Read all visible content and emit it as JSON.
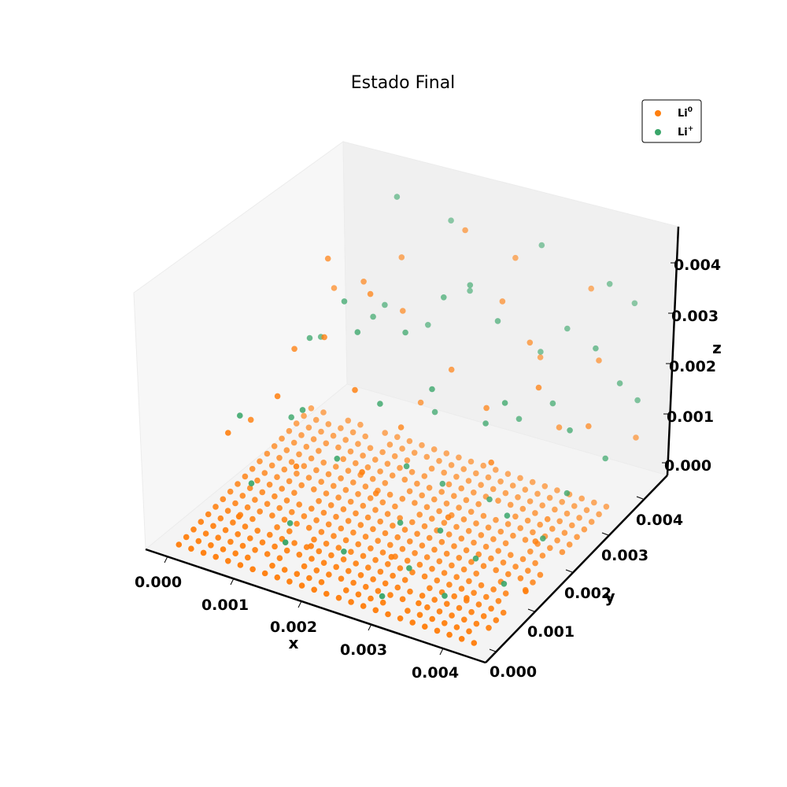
{
  "chart_data": {
    "type": "scatter",
    "title": "Estado Final",
    "xlabel": "x",
    "ylabel": "y",
    "zlabel": "z",
    "xlim": [
      0,
      0.0047
    ],
    "ylim": [
      0,
      0.0047
    ],
    "zlim": [
      0,
      0.0047
    ],
    "x_ticks": [
      "0.000",
      "0.001",
      "0.002",
      "0.003",
      "0.004"
    ],
    "y_ticks": [
      "0.000",
      "0.001",
      "0.002",
      "0.003",
      "0.004"
    ],
    "z_ticks": [
      "0.000",
      "0.001",
      "0.002",
      "0.003",
      "0.004"
    ],
    "legend_position": "top-right",
    "series": [
      {
        "name": "Li",
        "superscript": "0",
        "color": "#ff7f0e",
        "lattice": {
          "plane_z": 0,
          "x_start": 0.0003,
          "x_step": 0.00017,
          "x_count": 25,
          "y_start": 0.0003,
          "y_step": 0.00019,
          "y_count": 19,
          "missing_fraction": 0.05
        },
        "scattered_points": [
          [
            0.0008,
            0.003,
            0.0036
          ],
          [
            0.0015,
            0.0028,
            0.0034
          ],
          [
            0.0021,
            0.0041,
            0.0039
          ],
          [
            0.0028,
            0.0038,
            0.0031
          ],
          [
            0.0012,
            0.0022,
            0.0029
          ],
          [
            0.0033,
            0.0036,
            0.0027
          ],
          [
            0.0037,
            0.0044,
            0.0033
          ],
          [
            0.0041,
            0.0039,
            0.0025
          ],
          [
            0.0009,
            0.0016,
            0.0021
          ],
          [
            0.0018,
            0.0019,
            0.0024
          ],
          [
            0.0025,
            0.0031,
            0.0022
          ],
          [
            0.0031,
            0.0029,
            0.0019
          ],
          [
            0.0005,
            0.0011,
            0.0016
          ],
          [
            0.0014,
            0.0012,
            0.0013
          ],
          [
            0.0022,
            0.0024,
            0.0015
          ],
          [
            0.0036,
            0.0021,
            0.0017
          ],
          [
            0.0043,
            0.0033,
            0.0018
          ],
          [
            0.0011,
            0.0034,
            0.003
          ],
          [
            0.0027,
            0.0043,
            0.0035
          ],
          [
            0.0039,
            0.0027,
            0.0028
          ],
          [
            0.0016,
            0.0035,
            0.0026
          ],
          [
            0.0007,
            0.0024,
            0.0023
          ],
          [
            0.0034,
            0.0014,
            0.0011
          ],
          [
            0.0044,
            0.0018,
            0.0008
          ],
          [
            0.0046,
            0.0012,
            0.0004
          ],
          [
            0.004,
            0.0008,
            0.0003
          ],
          [
            0.0035,
            0.0005,
            0.0002
          ],
          [
            0.0029,
            0.0009,
            0.0005
          ],
          [
            0.0023,
            0.0016,
            0.0009
          ],
          [
            0.0019,
            0.0007,
            0.0004
          ],
          [
            0.001,
            0.0005,
            0.0007
          ],
          [
            0.0004,
            0.0019,
            0.0012
          ],
          [
            0.0032,
            0.0041,
            0.002
          ],
          [
            0.0045,
            0.0042,
            0.001
          ],
          [
            0.0013,
            0.004,
            0.0031
          ],
          [
            0.0024,
            0.001,
            0.0018
          ],
          [
            0.0038,
            0.0035,
            0.0014
          ],
          [
            0.002,
            0.0033,
            0.0012
          ],
          [
            0.0006,
            0.0036,
            0.0025
          ],
          [
            0.0042,
            0.0025,
            0.0006
          ]
        ]
      },
      {
        "name": "Li",
        "superscript": "+",
        "color": "#3aa66a",
        "scattered_points": [
          [
            0.0011,
            0.0042,
            0.004
          ],
          [
            0.0017,
            0.0045,
            0.0036
          ],
          [
            0.0024,
            0.0037,
            0.0033
          ],
          [
            0.003,
            0.0044,
            0.0038
          ],
          [
            0.0036,
            0.004,
            0.0028
          ],
          [
            0.0042,
            0.0046,
            0.0031
          ],
          [
            0.0045,
            0.0037,
            0.0024
          ],
          [
            0.0039,
            0.0031,
            0.0022
          ],
          [
            0.0033,
            0.0025,
            0.002
          ],
          [
            0.0027,
            0.0022,
            0.0026
          ],
          [
            0.002,
            0.0028,
            0.0029
          ],
          [
            0.0014,
            0.0031,
            0.0027
          ],
          [
            0.0008,
            0.0026,
            0.0024
          ],
          [
            0.0012,
            0.0017,
            0.0019
          ],
          [
            0.0019,
            0.0013,
            0.0016
          ],
          [
            0.0026,
            0.0018,
            0.0014
          ],
          [
            0.0034,
            0.0012,
            0.001
          ],
          [
            0.0041,
            0.0016,
            0.0013
          ],
          [
            0.0046,
            0.0022,
            0.0015
          ],
          [
            0.0044,
            0.001,
            0.0006
          ],
          [
            0.0038,
            0.0006,
            0.0004
          ],
          [
            0.0031,
            0.0003,
            0.0003
          ],
          [
            0.0024,
            0.0006,
            0.0006
          ],
          [
            0.0018,
            0.0002,
            0.0008
          ],
          [
            0.001,
            0.0008,
            0.0011
          ],
          [
            0.0005,
            0.0014,
            0.0017
          ],
          [
            0.0016,
            0.0023,
            0.0031
          ],
          [
            0.0023,
            0.0032,
            0.0034
          ],
          [
            0.0029,
            0.0035,
            0.003
          ],
          [
            0.0035,
            0.003,
            0.0018
          ],
          [
            0.0043,
            0.0028,
            0.0021
          ],
          [
            0.0047,
            0.003,
            0.0016
          ],
          [
            0.004,
            0.0043,
            0.0036
          ],
          [
            0.0022,
            0.0041,
            0.0028
          ],
          [
            0.0013,
            0.0036,
            0.0025
          ],
          [
            0.0028,
            0.0013,
            0.0008
          ],
          [
            0.0037,
            0.0019,
            0.0012
          ],
          [
            0.0032,
            0.0008,
            0.0005
          ],
          [
            0.0045,
            0.0018,
            0.0009
          ],
          [
            0.0009,
            0.002,
            0.0014
          ],
          [
            0.0015,
            0.0009,
            0.0005
          ],
          [
            0.0021,
            0.002,
            0.0022
          ],
          [
            0.0036,
            0.0024,
            0.0026
          ],
          [
            0.0042,
            0.0036,
            0.003
          ],
          [
            0.0025,
            0.0027,
            0.0017
          ],
          [
            0.0018,
            0.0038,
            0.0022
          ],
          [
            0.0033,
            0.0039,
            0.0023
          ],
          [
            0.0007,
            0.0031,
            0.002
          ],
          [
            0.003,
            0.002,
            0.0011
          ],
          [
            0.0046,
            0.004,
            0.0019
          ],
          [
            0.0039,
            0.0012,
            0.0007
          ],
          [
            0.0012,
            0.0027,
            0.0032
          ]
        ]
      }
    ]
  }
}
